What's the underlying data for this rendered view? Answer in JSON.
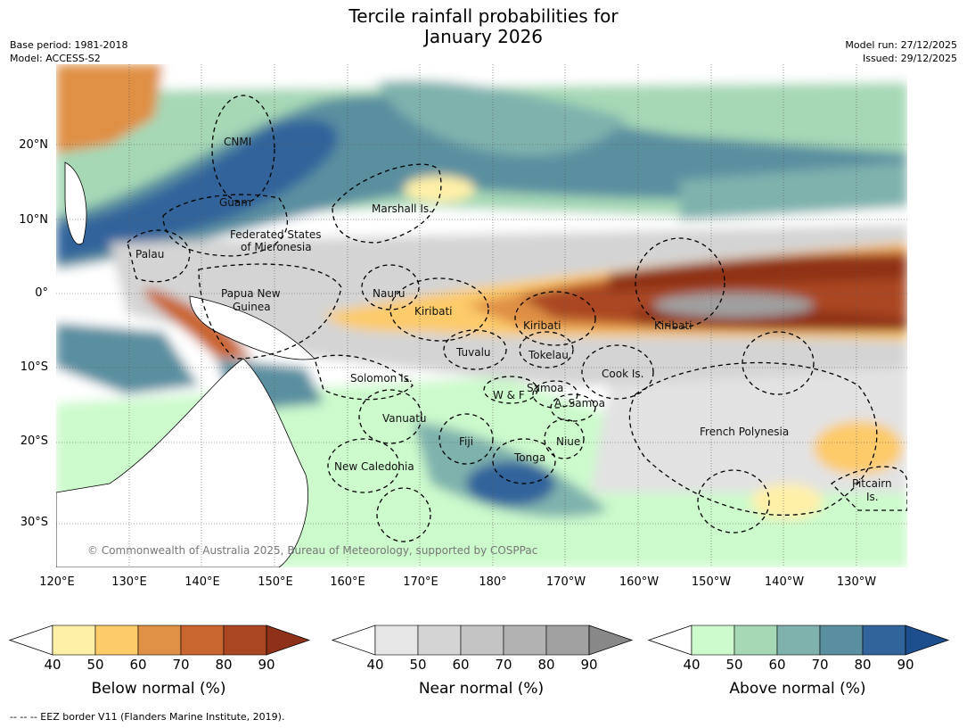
{
  "title_line1": "Tercile rainfall probabilities for",
  "title_line2": "January 2026",
  "meta": {
    "base_period": "Base period: 1981-2018",
    "model": "Model: ACCESS-S2",
    "model_run": "Model run: 27/12/2025",
    "issued": "Issued: 29/12/2025"
  },
  "lat_labels": [
    "20°N",
    "10°N",
    "0°",
    "10°S",
    "20°S",
    "30°S"
  ],
  "lon_labels": [
    "120°E",
    "130°E",
    "140°E",
    "150°E",
    "160°E",
    "170°E",
    "180°",
    "170°W",
    "160°W",
    "150°W",
    "140°W",
    "130°W"
  ],
  "regions": {
    "cnmi": "CNMI",
    "guam": "Guam",
    "marshall": "Marshall Is.",
    "fsm1": "Federated States",
    "fsm2": "of Micronesia",
    "palau": "Palau",
    "png1": "Papua New",
    "png2": "Guinea",
    "nauru": "Nauru",
    "kiribati_w": "Kiribati",
    "kiribati_c": "Kiribati",
    "kiribati_e": "Kiribati",
    "tuvalu": "Tuvalu",
    "tokelau": "Tokelau",
    "cook": "Cook Is.",
    "solomon": "Solomon Is.",
    "wf": "W & F",
    "samoa": "Samoa",
    "asamoa": "A. Samoa",
    "vanuatu": "Vanuatu",
    "fiji": "Fiji",
    "niue": "Niue",
    "tonga": "Tonga",
    "fp": "French Polynesia",
    "newcal": "New Caledonia",
    "pitcairn1": "Pitcairn",
    "pitcairn2": "Is."
  },
  "copyright": "© Commonwealth of Australia 2025, Bureau of Meteorology, supported by COSPPac",
  "colorbars": [
    {
      "title": "Below normal (%)",
      "ticks": [
        "40",
        "50",
        "60",
        "70",
        "80",
        "90"
      ],
      "colors": [
        "#fff0a8",
        "#fdcb6a",
        "#df9044",
        "#c9652f",
        "#aa4622"
      ],
      "extend": "#8f3018"
    },
    {
      "title": "Near normal (%)",
      "ticks": [
        "40",
        "50",
        "60",
        "70",
        "80",
        "90"
      ],
      "colors": [
        "#e6e6e6",
        "#d4d4d4",
        "#c4c4c4",
        "#b2b2b2",
        "#a0a0a0"
      ],
      "extend": "#888888"
    },
    {
      "title": "Above normal (%)",
      "ticks": [
        "40",
        "50",
        "60",
        "70",
        "80",
        "90"
      ],
      "colors": [
        "#ccfacc",
        "#a6d8b6",
        "#7fb2ad",
        "#5a8fa0",
        "#31649b"
      ],
      "extend": "#1d4f8f"
    }
  ],
  "eez_note": "--  --  -- EEZ border V11 (Flanders Marine Institute, 2019)."
}
